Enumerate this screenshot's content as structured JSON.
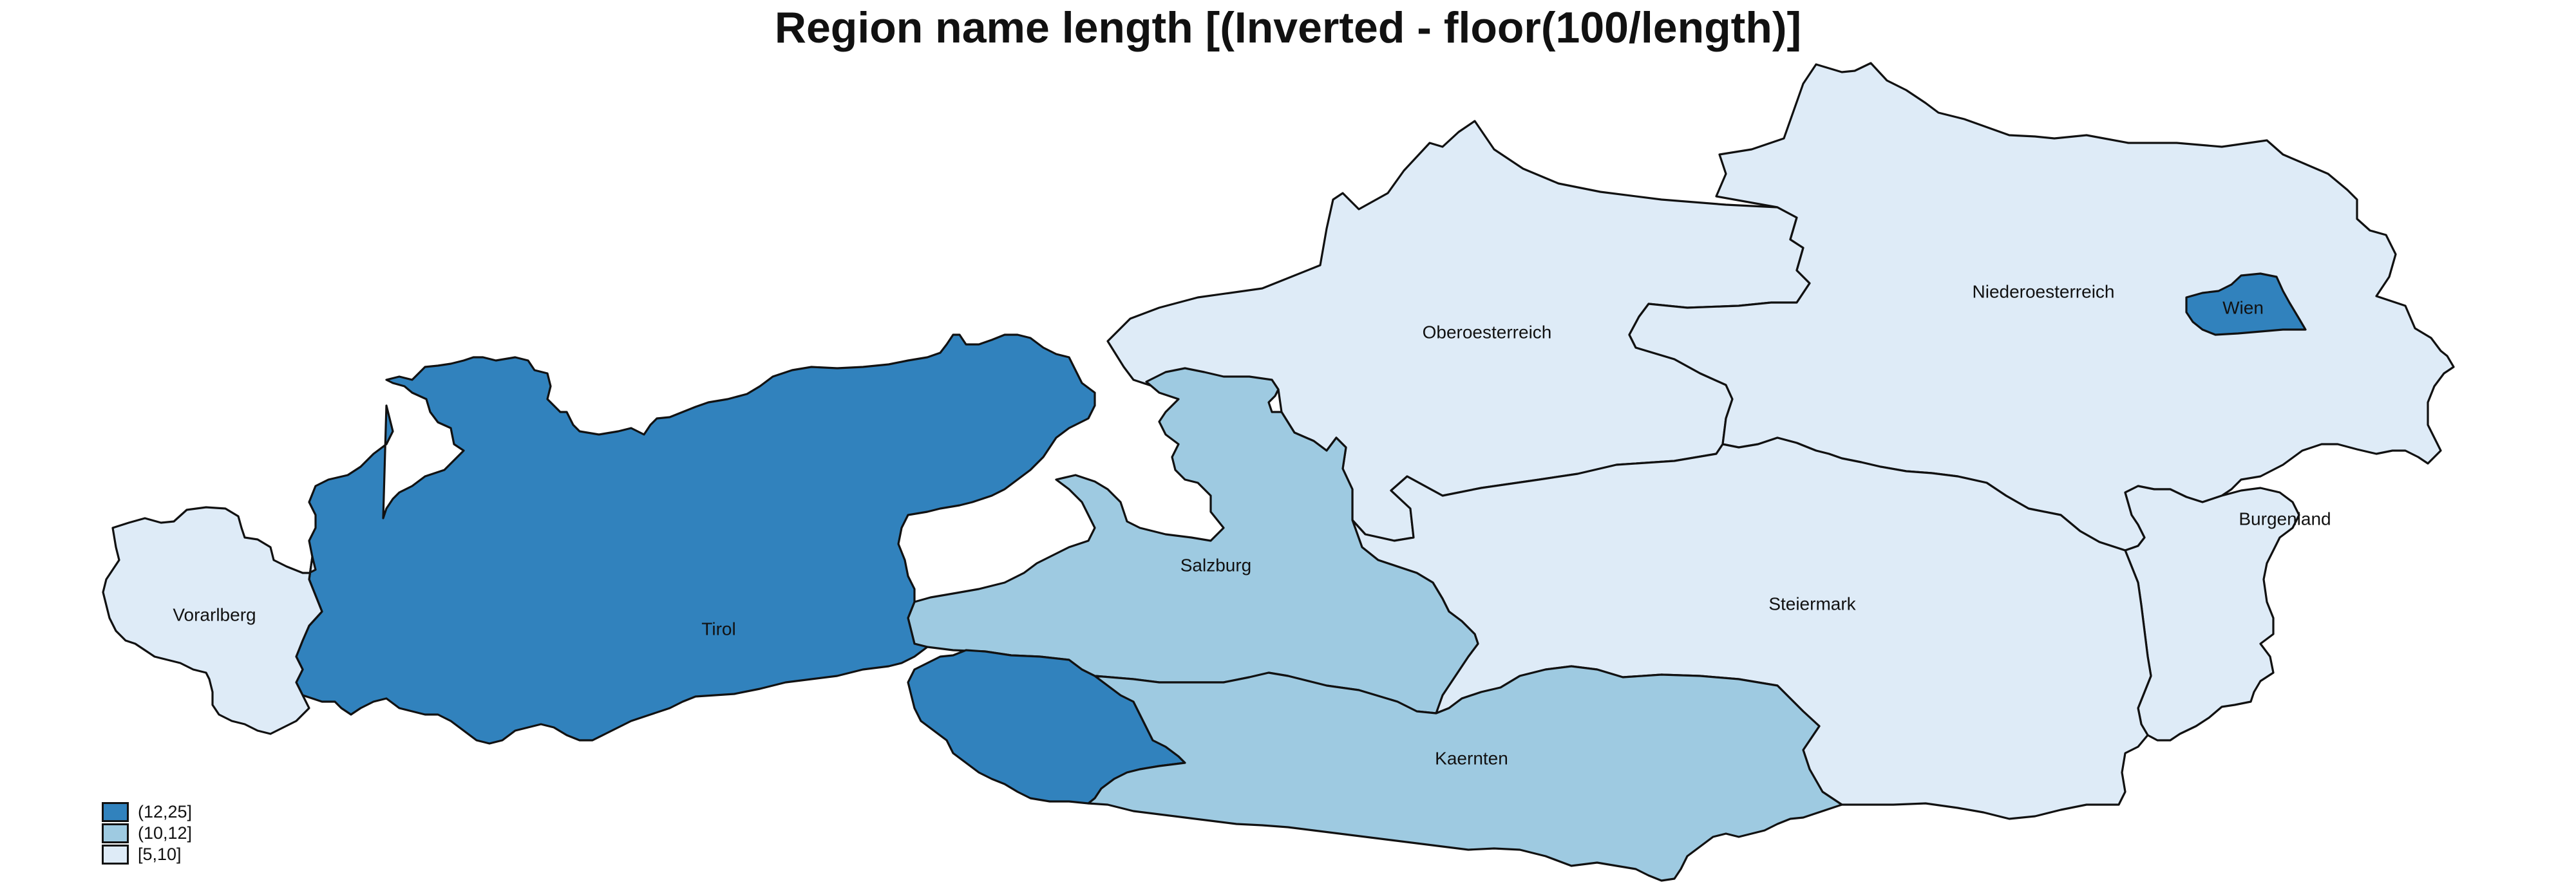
{
  "title": "Region name length [(Inverted - floor(100/length)]",
  "colors": {
    "dark": "#3182bd",
    "medium": "#9ecae1",
    "light": "#deebf7",
    "border": "#111111"
  },
  "regions": [
    {
      "name": "Vorarlberg",
      "class": "[5,10]",
      "color": "#deebf7"
    },
    {
      "name": "Tirol",
      "class": "(12,25]",
      "color": "#3182bd"
    },
    {
      "name": "Salzburg",
      "class": "(10,12]",
      "color": "#9ecae1"
    },
    {
      "name": "Kaernten",
      "class": "(10,12]",
      "color": "#9ecae1"
    },
    {
      "name": "Steiermark",
      "class": "[5,10]",
      "color": "#deebf7"
    },
    {
      "name": "Oberoesterreich",
      "class": "[5,10]",
      "color": "#deebf7"
    },
    {
      "name": "Niederoesterreich",
      "class": "[5,10]",
      "color": "#deebf7"
    },
    {
      "name": "Wien",
      "class": "(12,25]",
      "color": "#3182bd"
    },
    {
      "name": "Burgenland",
      "class": "[5,10]",
      "color": "#deebf7"
    }
  ],
  "legend": [
    {
      "label": "(12,25]",
      "color": "#3182bd"
    },
    {
      "label": "(10,12]",
      "color": "#9ecae1"
    },
    {
      "label": "[5,10]",
      "color": "#deebf7"
    }
  ]
}
